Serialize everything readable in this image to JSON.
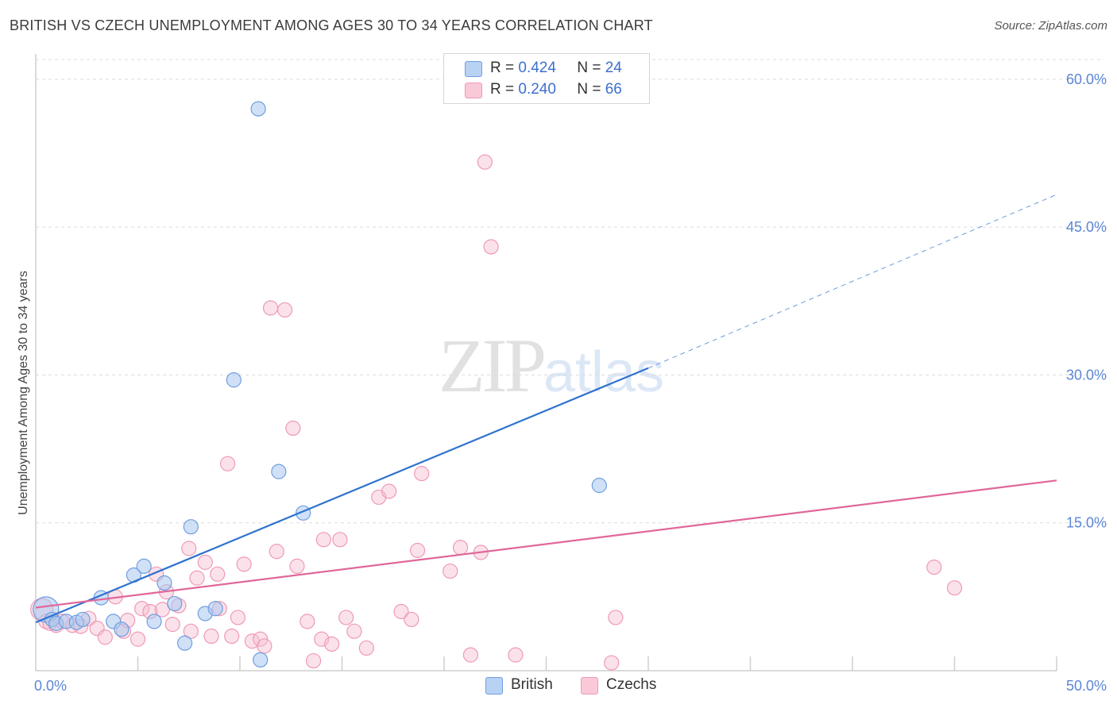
{
  "header": {
    "title": "BRITISH VS CZECH UNEMPLOYMENT AMONG AGES 30 TO 34 YEARS CORRELATION CHART",
    "source": "Source: ZipAtlas.com"
  },
  "watermark": {
    "zip": "ZIP",
    "atlas": "atlas"
  },
  "legend": {
    "british": {
      "r_label": "R =",
      "r_value": "0.424",
      "n_label": "N =",
      "n_value": "24"
    },
    "czechs": {
      "r_label": "R =",
      "r_value": "0.240",
      "n_label": "N =",
      "n_value": "66"
    }
  },
  "colors": {
    "british_fill": "#aac8f0",
    "british_stroke": "#6f9ee0",
    "british_line": "#2f72d0",
    "czechs_fill": "#f7bfd0",
    "czechs_stroke": "#ef9ab5",
    "czechs_line": "#e0679a",
    "grid": "#dcdcdc",
    "tick_text": "#5b86d6"
  },
  "chart_data": {
    "type": "scatter",
    "title": "BRITISH VS CZECH UNEMPLOYMENT AMONG AGES 30 TO 34 YEARS CORRELATION CHART",
    "xlabel": "",
    "ylabel": "Unemployment Among Ages 30 to 34 years",
    "xlim": [
      0,
      50
    ],
    "ylim": [
      0,
      62
    ],
    "x_tick_labels": [
      {
        "value": 0,
        "label": "0.0%"
      },
      {
        "value": 50,
        "label": "50.0%"
      }
    ],
    "y_tick_labels": [
      {
        "value": 15,
        "label": "15.0%"
      },
      {
        "value": 30,
        "label": "30.0%"
      },
      {
        "value": 45,
        "label": "45.0%"
      },
      {
        "value": 60,
        "label": "60.0%"
      }
    ],
    "grid": true,
    "legend_position": "top-center",
    "series": [
      {
        "name": "British",
        "color": "#aac8f0",
        "points": [
          [
            0.5,
            6.2
          ],
          [
            0.8,
            5.2
          ],
          [
            1.0,
            4.8
          ],
          [
            1.5,
            5.0
          ],
          [
            2.0,
            4.9
          ],
          [
            2.3,
            5.2
          ],
          [
            3.2,
            7.4
          ],
          [
            3.8,
            5.0
          ],
          [
            4.2,
            4.2
          ],
          [
            4.8,
            9.7
          ],
          [
            5.3,
            10.6
          ],
          [
            5.8,
            5.0
          ],
          [
            6.3,
            8.9
          ],
          [
            6.8,
            6.8
          ],
          [
            7.3,
            2.8
          ],
          [
            7.6,
            14.6
          ],
          [
            8.3,
            5.8
          ],
          [
            8.8,
            6.3
          ],
          [
            9.7,
            29.5
          ],
          [
            10.9,
            57.0
          ],
          [
            11.0,
            1.1
          ],
          [
            11.9,
            20.2
          ],
          [
            13.1,
            16.0
          ],
          [
            27.6,
            18.8
          ]
        ],
        "fit_line": {
          "x_start": 0.0,
          "y_start": 4.9,
          "x_solid_end": 30.0,
          "y_solid_end": 30.7,
          "x_dash_end": 50.0,
          "y_dash_end": 48.3
        }
      },
      {
        "name": "Czechs",
        "color": "#f7bfd0",
        "points": [
          [
            0.3,
            6.2
          ],
          [
            0.5,
            5.0
          ],
          [
            0.7,
            4.8
          ],
          [
            1.0,
            4.6
          ],
          [
            1.3,
            5.0
          ],
          [
            1.8,
            4.6
          ],
          [
            2.2,
            4.5
          ],
          [
            2.6,
            5.3
          ],
          [
            3.0,
            4.3
          ],
          [
            3.4,
            3.4
          ],
          [
            3.9,
            7.5
          ],
          [
            4.3,
            4.0
          ],
          [
            4.5,
            5.1
          ],
          [
            5.0,
            3.2
          ],
          [
            5.2,
            6.3
          ],
          [
            5.6,
            6.0
          ],
          [
            5.9,
            9.8
          ],
          [
            6.2,
            6.2
          ],
          [
            6.4,
            8.0
          ],
          [
            6.7,
            4.7
          ],
          [
            7.0,
            6.6
          ],
          [
            7.5,
            12.4
          ],
          [
            7.6,
            4.0
          ],
          [
            7.9,
            9.4
          ],
          [
            8.3,
            11.0
          ],
          [
            8.6,
            3.5
          ],
          [
            8.9,
            9.8
          ],
          [
            9.0,
            6.3
          ],
          [
            9.4,
            21.0
          ],
          [
            9.6,
            3.5
          ],
          [
            9.9,
            5.4
          ],
          [
            10.2,
            10.8
          ],
          [
            10.6,
            3.0
          ],
          [
            11.0,
            3.2
          ],
          [
            11.2,
            2.5
          ],
          [
            11.5,
            36.8
          ],
          [
            11.8,
            12.1
          ],
          [
            12.2,
            36.6
          ],
          [
            12.6,
            24.6
          ],
          [
            12.8,
            10.6
          ],
          [
            13.3,
            5.0
          ],
          [
            13.6,
            1.0
          ],
          [
            14.0,
            3.2
          ],
          [
            14.1,
            13.3
          ],
          [
            14.5,
            2.7
          ],
          [
            14.9,
            13.3
          ],
          [
            15.2,
            5.4
          ],
          [
            15.6,
            4.0
          ],
          [
            16.2,
            2.3
          ],
          [
            16.8,
            17.6
          ],
          [
            17.3,
            18.2
          ],
          [
            17.9,
            6.0
          ],
          [
            18.4,
            5.2
          ],
          [
            18.7,
            12.2
          ],
          [
            18.9,
            20.0
          ],
          [
            20.3,
            10.1
          ],
          [
            20.8,
            12.5
          ],
          [
            21.3,
            1.6
          ],
          [
            21.8,
            12.0
          ],
          [
            22.0,
            51.6
          ],
          [
            22.3,
            43.0
          ],
          [
            23.5,
            1.6
          ],
          [
            28.2,
            0.8
          ],
          [
            28.4,
            5.4
          ],
          [
            44.0,
            10.5
          ],
          [
            45.0,
            8.4
          ]
        ],
        "fit_line": {
          "x_start": 0.0,
          "y_start": 6.4,
          "x_end": 50.0,
          "y_end": 19.3
        }
      }
    ]
  },
  "bottom_legend": {
    "british_label": "British",
    "czechs_label": "Czechs"
  }
}
